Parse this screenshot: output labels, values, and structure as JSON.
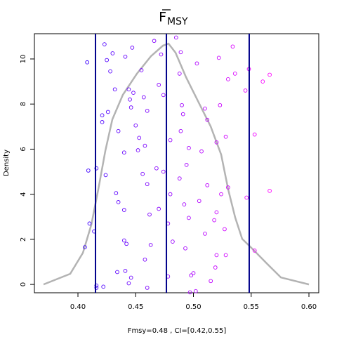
{
  "chart_data": {
    "type": "density",
    "title": "F",
    "title_subscript": "MSY",
    "xlabel": "Fmsy=0.48 , CI=[0.42,0.55]",
    "ylabel": "Density",
    "xlim": [
      0.3623,
      0.6085
    ],
    "ylim": [
      -0.37,
      11.12
    ],
    "xticks": [
      {
        "value": 0.4,
        "label": "0.40"
      },
      {
        "value": 0.45,
        "label": "0.45"
      },
      {
        "value": 0.5,
        "label": "0.50"
      },
      {
        "value": 0.55,
        "label": "0.55"
      },
      {
        "value": 0.6,
        "label": "0.60"
      }
    ],
    "yticks": [
      0,
      2,
      4,
      6,
      8,
      10
    ],
    "density": {
      "color": "#b3b3b3",
      "x": [
        0.3702,
        0.3933,
        0.4043,
        0.4116,
        0.4176,
        0.4237,
        0.4298,
        0.4389,
        0.4511,
        0.4632,
        0.4736,
        0.4784,
        0.4845,
        0.4936,
        0.5058,
        0.5149,
        0.524,
        0.5301,
        0.5362,
        0.5422,
        0.5514,
        0.5635,
        0.5757,
        0.6
      ],
      "y": [
        0,
        0.47,
        1.4,
        2.65,
        4.21,
        5.92,
        7.32,
        8.41,
        9.35,
        10.12,
        10.59,
        10.68,
        10.28,
        9.19,
        7.94,
        7.01,
        5.76,
        4.21,
        2.96,
        2.02,
        1.56,
        0.93,
        0.31,
        0
      ]
    },
    "vlines": {
      "color": "#00008b",
      "values": [
        0.4152,
        0.4766,
        0.5483
      ]
    },
    "points": {
      "colors": [
        "#3a00ff",
        "#ff00ff"
      ],
      "x": [
        0.408,
        0.409,
        0.416,
        0.41,
        0.414,
        0.406,
        0.416,
        0.416,
        0.422,
        0.423,
        0.43,
        0.425,
        0.428,
        0.432,
        0.421,
        0.421,
        0.426,
        0.435,
        0.424,
        0.433,
        0.44,
        0.435,
        0.44,
        0.44,
        0.442,
        0.434,
        0.441,
        0.446,
        0.444,
        0.447,
        0.441,
        0.444,
        0.448,
        0.445,
        0.446,
        0.45,
        0.453,
        0.452,
        0.455,
        0.457,
        0.46,
        0.458,
        0.456,
        0.46,
        0.462,
        0.458,
        0.463,
        0.46,
        0.466,
        0.472,
        0.47,
        0.474,
        0.468,
        0.474,
        0.47,
        0.48,
        0.48,
        0.478,
        0.482,
        0.478,
        0.485,
        0.489,
        0.488,
        0.49,
        0.491,
        0.489,
        0.496,
        0.494,
        0.488,
        0.492,
        0.496,
        0.493,
        0.5,
        0.502,
        0.497,
        0.503,
        0.51,
        0.512,
        0.507,
        0.512,
        0.51,
        0.518,
        0.52,
        0.515,
        0.519,
        0.522,
        0.523,
        0.52,
        0.528,
        0.524,
        0.53,
        0.527,
        0.528,
        0.53,
        0.534,
        0.536,
        0.545,
        0.548,
        0.56,
        0.566,
        0.546,
        0.553,
        0.553,
        0.566,
        0.52,
        0.505,
        0.498
      ],
      "y": [
        9.85,
        5.05,
        5.15,
        2.7,
        2.35,
        1.65,
        -0.15,
        -0.05,
        -0.1,
        10.65,
        10.25,
        9.95,
        9.45,
        8.65,
        7.5,
        7.2,
        7.65,
        6.8,
        4.85,
        4.05,
        5.85,
        3.65,
        3.3,
        1.95,
        1.8,
        0.55,
        0.6,
        0.3,
        0.05,
        10.5,
        10.1,
        8.65,
        8.5,
        8.2,
        7.85,
        7.05,
        6.5,
        5.95,
        9.5,
        8.3,
        7.7,
        6.15,
        4.9,
        4.45,
        3.1,
        1.1,
        1.75,
        -0.15,
        10.8,
        10.2,
        8.85,
        8.4,
        5.15,
        5.0,
        3.35,
        6.4,
        4.0,
        2.7,
        1.9,
        0.35,
        10.95,
        10.3,
        9.35,
        7.95,
        7.55,
        6.8,
        6.05,
        5.3,
        4.7,
        3.55,
        2.95,
        1.6,
        0.5,
        -0.3,
        -0.35,
        9.8,
        7.8,
        7.3,
        5.9,
        4.4,
        2.25,
        2.85,
        1.3,
        0.15,
        0.75,
        10.05,
        7.95,
        6.3,
        6.55,
        4.0,
        4.3,
        2.45,
        1.3,
        9.1,
        10.55,
        9.35,
        8.6,
        9.55,
        9.0,
        9.3,
        3.85,
        6.65,
        1.5,
        4.15,
        3.2,
        3.7,
        0.4
      ]
    }
  }
}
